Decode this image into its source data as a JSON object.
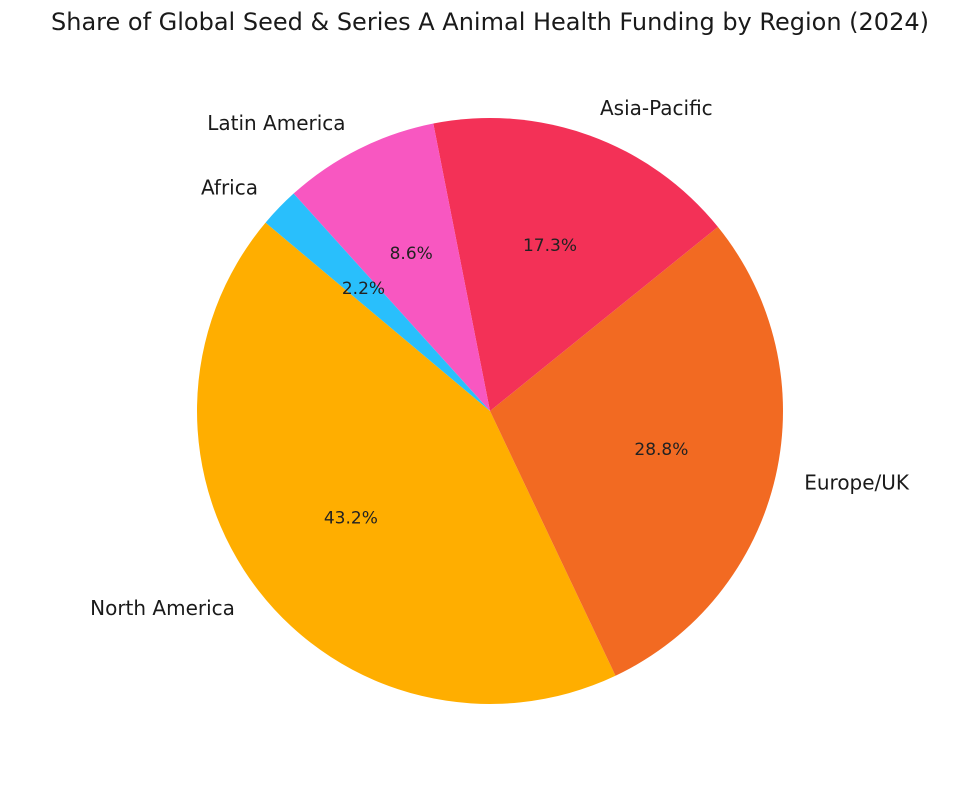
{
  "chart_data": {
    "type": "pie",
    "title": "Share of Global Seed & Series A Animal Health Funding by Region (2024)",
    "categories": [
      "North America",
      "Europe/UK",
      "Asia-Pacific",
      "Latin America",
      "Africa"
    ],
    "values": [
      43.2,
      28.8,
      17.3,
      8.6,
      2.2
    ],
    "value_labels": [
      "43.2%",
      "28.8%",
      "17.3%",
      "8.6%",
      "2.2%"
    ],
    "colors": [
      "#FFAE00",
      "#F26A22",
      "#F33157",
      "#F857C1",
      "#29BFFC"
    ],
    "start_angle_deg": 140,
    "direction": "counterclockwise",
    "legend": "none"
  }
}
